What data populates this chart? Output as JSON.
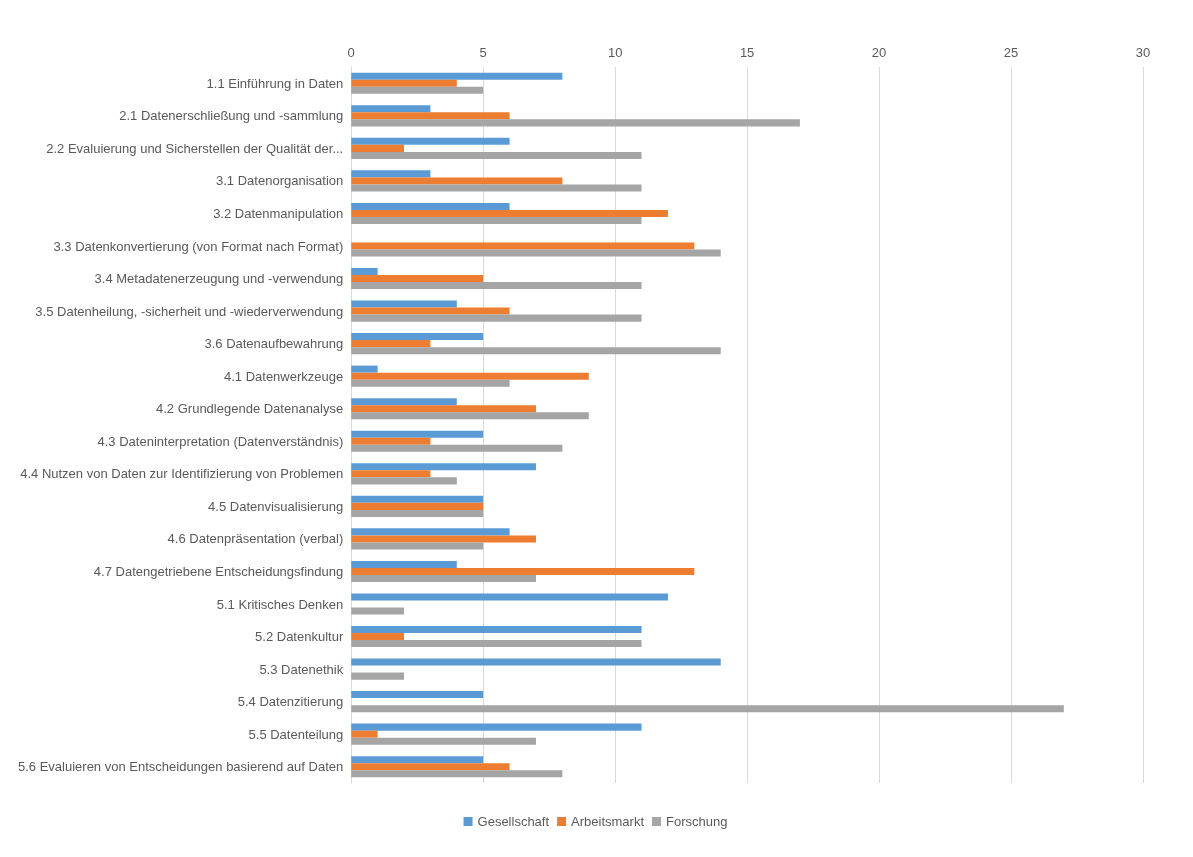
{
  "chart_data": {
    "type": "bar",
    "orientation": "horizontal",
    "categories": [
      "1.1 Einführung in Daten",
      "2.1 Datenerschließung und -sammlung",
      "2.2 Evaluierung und Sicherstellen der Qualität der...",
      "3.1 Datenorganisation",
      "3.2 Datenmanipulation",
      "3.3 Datenkonvertierung (von Format nach Format)",
      "3.4 Metadatenerzeugung und -verwendung",
      "3.5 Datenheilung, -sicherheit und -wiederverwendung",
      "3.6 Datenaufbewahrung",
      "4.1 Datenwerkzeuge",
      "4.2 Grundlegende Datenanalyse",
      "4.3 Dateninterpretation (Datenverständnis)",
      "4.4 Nutzen von Daten zur Identifizierung von Problemen",
      "4.5 Datenvisualisierung",
      "4.6 Datenpräsentation (verbal)",
      "4.7 Datengetriebene Entscheidungsfindung",
      "5.1 Kritisches Denken",
      "5.2 Datenkultur",
      "5.3 Datenethik",
      "5.4 Datenzitierung",
      "5.5 Datenteilung",
      "5.6 Evaluieren von Entscheidungen basierend auf Daten"
    ],
    "series": [
      {
        "name": "Gesellschaft",
        "color": "#5b9bd5",
        "values": [
          8,
          3,
          6,
          3,
          6,
          0,
          1,
          4,
          5,
          1,
          4,
          5,
          7,
          5,
          6,
          4,
          12,
          11,
          14,
          5,
          11,
          5
        ]
      },
      {
        "name": "Arbeitsmarkt",
        "color": "#ed7d31",
        "values": [
          4,
          6,
          2,
          8,
          12,
          13,
          5,
          6,
          3,
          9,
          7,
          3,
          3,
          5,
          7,
          13,
          0,
          2,
          0,
          0,
          1,
          6
        ]
      },
      {
        "name": "Forschung",
        "color": "#a5a5a5",
        "values": [
          5,
          17,
          11,
          11,
          11,
          14,
          11,
          11,
          14,
          6,
          9,
          8,
          4,
          5,
          5,
          7,
          2,
          11,
          2,
          27,
          7,
          8
        ]
      }
    ],
    "xlim": [
      0,
      30
    ],
    "xticks": [
      0,
      5,
      10,
      15,
      20,
      25,
      30
    ],
    "grid": "x",
    "legend": "bottom"
  }
}
